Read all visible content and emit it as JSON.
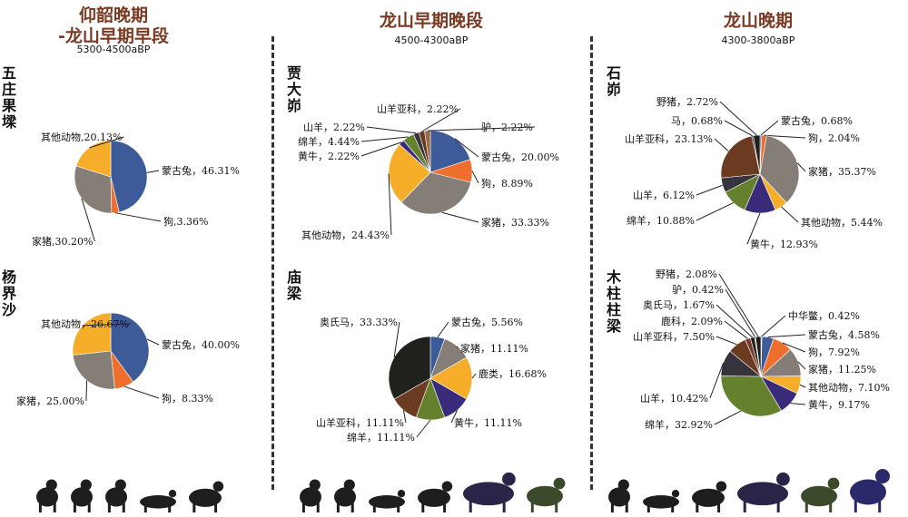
{
  "periods": [
    {
      "title_line1": "仰韶晚期",
      "title_line2": "-龙山早期早段",
      "range": "5300-4500aBP"
    },
    {
      "title_line1": "龙山早期晚段",
      "title_line2": "",
      "range": "4500-4300aBP"
    },
    {
      "title_line1": "龙山晚期",
      "title_line2": "",
      "range": "4300-3800aBP"
    }
  ],
  "sites": [
    "五庄果墚",
    "杨界沙",
    "贾大峁",
    "庙梁",
    "石峁",
    "木柱柱梁"
  ],
  "colors": {
    "蒙古兔": "#3d5a99",
    "狗": "#ee6f2d",
    "家猪": "#857e77",
    "其他动物": "#f6ae2a",
    "黄牛": "#3a2a7a",
    "绵羊": "#66812e",
    "山羊": "#37333d",
    "山羊亚科": "#6a3a21",
    "驴": "#9a6a4a",
    "马": "#2a2a2a",
    "野猪": "#1e1e1e",
    "鹿类": "#f6ae2a",
    "鹿科": "#7a3b2b",
    "奥氏马": "#20201c",
    "中华鳖": "#8a8a8a"
  },
  "chart_data": [
    {
      "type": "pie",
      "site": "五庄果墚",
      "slices": [
        {
          "name": "蒙古兔",
          "value": 46.31,
          "label": "蒙古兔，46.31%"
        },
        {
          "name": "狗",
          "value": 3.36,
          "label": "狗,3.36%"
        },
        {
          "name": "家猪",
          "value": 30.2,
          "label": "家猪,30.20%"
        },
        {
          "name": "其他动物",
          "value": 20.13,
          "label": "其他动物,20.13%"
        }
      ]
    },
    {
      "type": "pie",
      "site": "杨界沙",
      "slices": [
        {
          "name": "蒙古兔",
          "value": 40.0,
          "label": "蒙古兔，40.00%"
        },
        {
          "name": "狗",
          "value": 8.33,
          "label": "狗，8.33%"
        },
        {
          "name": "家猪",
          "value": 25.0,
          "label": "家猪，25.00%"
        },
        {
          "name": "其他动物",
          "value": 26.67,
          "label": "其他动物，26.67%"
        }
      ]
    },
    {
      "type": "pie",
      "site": "贾大峁",
      "slices": [
        {
          "name": "蒙古兔",
          "value": 20.0,
          "label": "蒙古兔，20.00%"
        },
        {
          "name": "狗",
          "value": 8.89,
          "label": "狗，8.89%"
        },
        {
          "name": "家猪",
          "value": 33.33,
          "label": "家猪，33.33%"
        },
        {
          "name": "其他动物",
          "value": 24.43,
          "label": "其他动物，24.43%"
        },
        {
          "name": "黄牛",
          "value": 2.22,
          "label": "黄牛，2.22%"
        },
        {
          "name": "绵羊",
          "value": 4.44,
          "label": "绵羊，4.44%"
        },
        {
          "name": "山羊",
          "value": 2.22,
          "label": "山羊，2.22%"
        },
        {
          "name": "山羊亚科",
          "value": 2.22,
          "label": "山羊亚科，2.22%"
        },
        {
          "name": "驴",
          "value": 2.22,
          "label": "驴，2.22%"
        }
      ]
    },
    {
      "type": "pie",
      "site": "庙梁",
      "slices": [
        {
          "name": "蒙古兔",
          "value": 5.56,
          "label": "蒙古兔，5.56%"
        },
        {
          "name": "家猪",
          "value": 11.11,
          "label": "家猪，11.11%"
        },
        {
          "name": "鹿类",
          "value": 16.68,
          "label": "鹿类，16.68%"
        },
        {
          "name": "黄牛",
          "value": 11.11,
          "label": "黄牛，11.11%"
        },
        {
          "name": "绵羊",
          "value": 11.11,
          "label": "绵羊，11.11%"
        },
        {
          "name": "山羊亚科",
          "value": 11.11,
          "label": "山羊亚科，11.11%"
        },
        {
          "name": "奥氏马",
          "value": 33.33,
          "label": "奥氏马，33.33%"
        }
      ]
    },
    {
      "type": "pie",
      "site": "石峁",
      "slices": [
        {
          "name": "蒙古兔",
          "value": 0.68,
          "label": "蒙古兔，0.68%"
        },
        {
          "name": "狗",
          "value": 2.04,
          "label": "狗，2.04%"
        },
        {
          "name": "家猪",
          "value": 35.37,
          "label": "家猪，35.37%"
        },
        {
          "name": "其他动物",
          "value": 5.44,
          "label": "其他动物，5.44%"
        },
        {
          "name": "黄牛",
          "value": 12.93,
          "label": "黄牛，12.93%"
        },
        {
          "name": "绵羊",
          "value": 10.88,
          "label": "绵羊，10.88%"
        },
        {
          "name": "山羊",
          "value": 6.12,
          "label": "山羊，6.12%"
        },
        {
          "name": "山羊亚科",
          "value": 23.13,
          "label": "山羊亚科，23.13%"
        },
        {
          "name": "马",
          "value": 0.68,
          "label": "马，0.68%"
        },
        {
          "name": "野猪",
          "value": 2.72,
          "label": "野猪，2.72%"
        }
      ]
    },
    {
      "type": "pie",
      "site": "木柱柱梁",
      "slices": [
        {
          "name": "中华鳖",
          "value": 0.42,
          "label": "中华鳖，0.42%"
        },
        {
          "name": "蒙古兔",
          "value": 4.58,
          "label": "蒙古兔，4.58%"
        },
        {
          "name": "狗",
          "value": 7.92,
          "label": "狗，7.92%"
        },
        {
          "name": "家猪",
          "value": 11.25,
          "label": "家猪，11.25%"
        },
        {
          "name": "其他动物",
          "value": 7.1,
          "label": "其他动物，7.10%"
        },
        {
          "name": "黄牛",
          "value": 9.17,
          "label": "黄牛，9.17%"
        },
        {
          "name": "绵羊",
          "value": 32.92,
          "label": "绵羊，32.92%"
        },
        {
          "name": "山羊",
          "value": 10.42,
          "label": "山羊，10.42%"
        },
        {
          "name": "山羊亚科",
          "value": 7.5,
          "label": "山羊亚科，7.50%"
        },
        {
          "name": "鹿科",
          "value": 2.09,
          "label": "鹿科，2.09%"
        },
        {
          "name": "奥氏马",
          "value": 1.67,
          "label": "奥氏马，1.67%"
        },
        {
          "name": "驴",
          "value": 0.42,
          "label": "驴，0.42%"
        },
        {
          "name": "野猪",
          "value": 2.08,
          "label": "野猪，2.08%"
        }
      ]
    }
  ],
  "silhouettes": [
    [
      "rabbit",
      "rabbit",
      "rabbit",
      "pig",
      "dog"
    ],
    [
      "rabbit",
      "rabbit",
      "pig",
      "dog",
      "cattle",
      "sheep"
    ],
    [
      "rabbit",
      "pig",
      "dog",
      "cattle",
      "sheep",
      "goat"
    ]
  ]
}
